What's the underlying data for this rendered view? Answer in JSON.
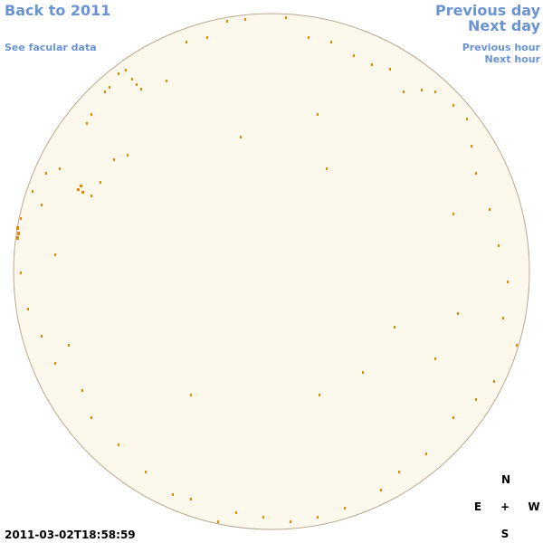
{
  "links": {
    "back": "Back to 2011",
    "facular": "See facular data",
    "previous_day": "Previous day",
    "next_day": "Next day",
    "previous_hour": "Previous hour",
    "next_hour": "Next hour"
  },
  "timestamp": "2011-03-02T18:58:59",
  "compass": {
    "north": "N",
    "east": "E",
    "center": "+",
    "west": "W",
    "south": "S"
  }
}
